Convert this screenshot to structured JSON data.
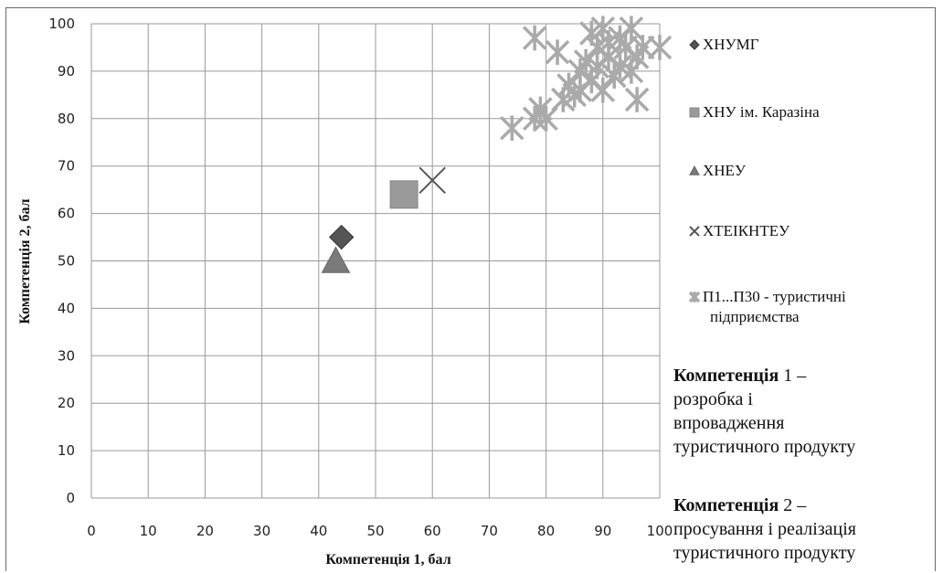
{
  "chart_data": {
    "type": "scatter",
    "xlabel": "Компетенція 1, бал",
    "ylabel": "Компетенція  2, бал",
    "xlim": [
      0,
      100
    ],
    "ylim": [
      0,
      100
    ],
    "x_ticks": [
      "0",
      "10",
      "20",
      "30",
      "40",
      "50",
      "60",
      "70",
      "80",
      "90",
      "100"
    ],
    "y_ticks": [
      "0",
      "10",
      "20",
      "30",
      "40",
      "50",
      "60",
      "70",
      "80",
      "90",
      "100"
    ],
    "grid": true,
    "legend_position": "right",
    "series": [
      {
        "name": "ХНУМГ",
        "marker": "diamond",
        "color": "#555555",
        "points": [
          [
            44,
            55
          ]
        ]
      },
      {
        "name": "ХНУ ім. Каразіна",
        "marker": "square",
        "color": "#9a9a9a",
        "points": [
          [
            55,
            64
          ]
        ]
      },
      {
        "name": "ХНЕУ",
        "marker": "triangle",
        "color": "#7a7a7a",
        "points": [
          [
            43,
            50
          ]
        ]
      },
      {
        "name": "ХТЕІКНТЕУ",
        "marker": "x",
        "color": "#555555",
        "points": [
          [
            60,
            67
          ]
        ]
      },
      {
        "name": "П1...П30 - туристичні підприємства",
        "marker": "asterisk",
        "color": "#aaaaaa",
        "points": [
          [
            74,
            78
          ],
          [
            78,
            97
          ],
          [
            78,
            80
          ],
          [
            79,
            82
          ],
          [
            80,
            80
          ],
          [
            82,
            94
          ],
          [
            83,
            84
          ],
          [
            84,
            87
          ],
          [
            85,
            85
          ],
          [
            86,
            90
          ],
          [
            86,
            86
          ],
          [
            87,
            92
          ],
          [
            88,
            98
          ],
          [
            88,
            88
          ],
          [
            89,
            95
          ],
          [
            89,
            91
          ],
          [
            90,
            99
          ],
          [
            90,
            86
          ],
          [
            91,
            93
          ],
          [
            91,
            96
          ],
          [
            92,
            89
          ],
          [
            93,
            97
          ],
          [
            93,
            91
          ],
          [
            94,
            95
          ],
          [
            95,
            99
          ],
          [
            95,
            90
          ],
          [
            96,
            93
          ],
          [
            96,
            84
          ],
          [
            97,
            95
          ],
          [
            100,
            95
          ]
        ]
      }
    ],
    "notes": [
      {
        "bold": "Компетенція",
        "rest": " 1 –",
        "lines": [
          "розробка і",
          "впровадження",
          "туристичного продукту"
        ]
      },
      {
        "bold": "Компетенція",
        "rest": " 2 –",
        "lines": [
          "просування і реалізація",
          "туристичного продукту"
        ]
      }
    ]
  }
}
